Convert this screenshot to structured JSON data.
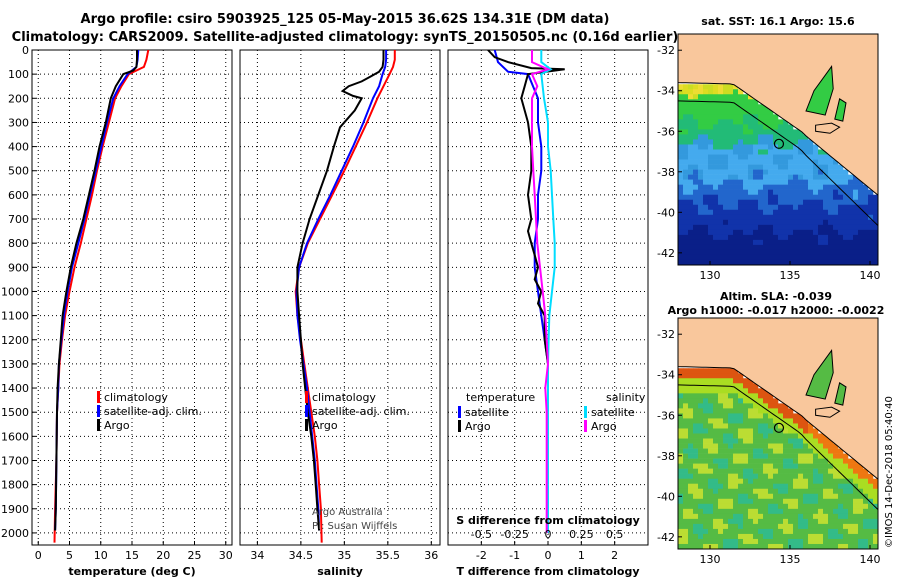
{
  "title_line1": "Argo profile: csiro 5903925_125 05-May-2015 36.62S 134.31E (DM data)",
  "title_line2": "Climatology: CARS2009. Satellite-adjusted climatology: synTS_20150505.nc (0.16d earlier)",
  "footer": "©IMOS 14-Dec-2018 05:40:40",
  "credit_line1": "Argo Australia",
  "credit_line2": "PI: Susan Wijffels",
  "colors": {
    "climatology": "#ff0000",
    "satellite": "#0000ff",
    "argo": "#000000",
    "salinity_satellite": "#00ddff",
    "salinity_argo": "#ff00ff"
  },
  "chart_data": [
    {
      "type": "line",
      "panel": "temperature",
      "xlabel": "temperature (deg C)",
      "ylabel": "",
      "xlim": [
        -1,
        31
      ],
      "ylim": [
        2050,
        0
      ],
      "xticks": [
        0,
        5,
        10,
        15,
        20,
        25,
        30
      ],
      "yticks": [
        0,
        100,
        200,
        300,
        400,
        500,
        600,
        700,
        800,
        900,
        1000,
        1100,
        1200,
        1300,
        1400,
        1500,
        1600,
        1700,
        1800,
        1900,
        2000
      ],
      "grid": true,
      "legend": "lower-center",
      "series": [
        {
          "name": "climatology",
          "points": [
            [
              17.6,
              0
            ],
            [
              17.3,
              40
            ],
            [
              16.9,
              70
            ],
            [
              14.5,
              100
            ],
            [
              13.3,
              150
            ],
            [
              12.3,
              200
            ],
            [
              11.3,
              300
            ],
            [
              10.3,
              400
            ],
            [
              9.4,
              500
            ],
            [
              8.6,
              600
            ],
            [
              7.7,
              700
            ],
            [
              6.8,
              800
            ],
            [
              5.8,
              900
            ],
            [
              5.0,
              1000
            ],
            [
              4.3,
              1100
            ],
            [
              3.8,
              1200
            ],
            [
              3.4,
              1300
            ],
            [
              3.2,
              1400
            ],
            [
              3.0,
              1500
            ],
            [
              2.9,
              1700
            ],
            [
              2.7,
              1900
            ],
            [
              2.6,
              2040
            ]
          ]
        },
        {
          "name": "satellite-adj. clim.",
          "points": [
            [
              16.0,
              0
            ],
            [
              15.9,
              40
            ],
            [
              15.7,
              70
            ],
            [
              14.3,
              100
            ],
            [
              13.0,
              150
            ],
            [
              12.0,
              200
            ],
            [
              11.0,
              300
            ],
            [
              10.1,
              400
            ],
            [
              9.2,
              500
            ],
            [
              8.3,
              600
            ],
            [
              7.4,
              700
            ],
            [
              6.4,
              800
            ],
            [
              5.4,
              900
            ],
            [
              4.7,
              1000
            ],
            [
              4.1,
              1100
            ],
            [
              3.7,
              1200
            ],
            [
              3.3,
              1300
            ],
            [
              3.2,
              1400
            ],
            [
              3.0,
              1500
            ],
            [
              2.9,
              1700
            ],
            [
              2.8,
              1900
            ],
            [
              2.7,
              1990
            ]
          ]
        },
        {
          "name": "Argo",
          "points": [
            [
              15.8,
              0
            ],
            [
              15.8,
              40
            ],
            [
              15.7,
              70
            ],
            [
              15.2,
              85
            ],
            [
              13.6,
              100
            ],
            [
              12.4,
              150
            ],
            [
              11.6,
              200
            ],
            [
              10.8,
              300
            ],
            [
              9.8,
              400
            ],
            [
              9.0,
              500
            ],
            [
              8.1,
              600
            ],
            [
              7.2,
              700
            ],
            [
              6.1,
              800
            ],
            [
              5.2,
              900
            ],
            [
              4.5,
              1000
            ],
            [
              3.9,
              1100
            ],
            [
              3.6,
              1200
            ],
            [
              3.3,
              1300
            ],
            [
              3.1,
              1400
            ],
            [
              3.0,
              1500
            ],
            [
              2.9,
              1700
            ],
            [
              2.8,
              1900
            ],
            [
              2.7,
              1990
            ]
          ]
        }
      ]
    },
    {
      "type": "line",
      "panel": "salinity",
      "xlabel": "salinity",
      "ylabel": "",
      "xlim": [
        33.8,
        36.1
      ],
      "ylim": [
        2050,
        0
      ],
      "xticks": [
        34,
        34.5,
        35,
        35.5,
        36
      ],
      "xticklabels": [
        "34",
        "34.5",
        "35",
        "35.5",
        "36"
      ],
      "grid": true,
      "legend": "lower-center",
      "series": [
        {
          "name": "climatology",
          "points": [
            [
              35.58,
              0
            ],
            [
              35.58,
              40
            ],
            [
              35.56,
              70
            ],
            [
              35.52,
              100
            ],
            [
              35.45,
              150
            ],
            [
              35.38,
              200
            ],
            [
              35.26,
              300
            ],
            [
              35.13,
              400
            ],
            [
              35.0,
              500
            ],
            [
              34.86,
              600
            ],
            [
              34.72,
              700
            ],
            [
              34.58,
              800
            ],
            [
              34.48,
              900
            ],
            [
              34.44,
              1000
            ],
            [
              34.46,
              1100
            ],
            [
              34.5,
              1200
            ],
            [
              34.54,
              1300
            ],
            [
              34.58,
              1400
            ],
            [
              34.62,
              1500
            ],
            [
              34.66,
              1600
            ],
            [
              34.69,
              1700
            ],
            [
              34.71,
              1800
            ],
            [
              34.73,
              1900
            ],
            [
              34.74,
              2040
            ]
          ]
        },
        {
          "name": "satellite-adj. clim.",
          "points": [
            [
              35.48,
              0
            ],
            [
              35.48,
              40
            ],
            [
              35.47,
              70
            ],
            [
              35.44,
              100
            ],
            [
              35.4,
              150
            ],
            [
              35.33,
              200
            ],
            [
              35.22,
              300
            ],
            [
              35.1,
              400
            ],
            [
              34.97,
              500
            ],
            [
              34.84,
              600
            ],
            [
              34.7,
              700
            ],
            [
              34.57,
              800
            ],
            [
              34.48,
              900
            ],
            [
              34.45,
              1000
            ],
            [
              34.46,
              1100
            ],
            [
              34.49,
              1200
            ],
            [
              34.53,
              1300
            ],
            [
              34.57,
              1400
            ],
            [
              34.6,
              1500
            ],
            [
              34.63,
              1600
            ],
            [
              34.66,
              1700
            ],
            [
              34.68,
              1800
            ],
            [
              34.7,
              1900
            ],
            [
              34.71,
              1990
            ]
          ]
        },
        {
          "name": "Argo",
          "points": [
            [
              35.45,
              0
            ],
            [
              35.45,
              40
            ],
            [
              35.44,
              70
            ],
            [
              35.4,
              90
            ],
            [
              35.3,
              110
            ],
            [
              35.2,
              130
            ],
            [
              35.05,
              150
            ],
            [
              34.98,
              170
            ],
            [
              35.1,
              190
            ],
            [
              35.2,
              200
            ],
            [
              35.12,
              250
            ],
            [
              34.95,
              320
            ],
            [
              34.88,
              400
            ],
            [
              34.8,
              500
            ],
            [
              34.7,
              600
            ],
            [
              34.6,
              700
            ],
            [
              34.52,
              800
            ],
            [
              34.46,
              900
            ],
            [
              34.46,
              1000
            ],
            [
              34.48,
              1100
            ],
            [
              34.5,
              1200
            ],
            [
              34.52,
              1300
            ],
            [
              34.55,
              1400
            ],
            [
              34.58,
              1500
            ],
            [
              34.62,
              1600
            ],
            [
              34.65,
              1700
            ],
            [
              34.67,
              1800
            ],
            [
              34.69,
              1900
            ],
            [
              34.71,
              1990
            ]
          ]
        }
      ]
    },
    {
      "type": "line",
      "panel": "difference",
      "xlabel": "T difference from climatology",
      "xlabel2": "S difference from climatology",
      "ylabel": "",
      "xlim": [
        -3,
        3
      ],
      "x2lim": [
        -0.75,
        0.75
      ],
      "ylim": [
        2050,
        0
      ],
      "xticks": [
        -2,
        -1,
        0,
        1,
        2
      ],
      "x2ticks": [
        -0.5,
        -0.25,
        0,
        0.25,
        0.5
      ],
      "x2ticklabels": [
        "-0.5",
        "-0.25",
        "0",
        "0.25",
        "0.5"
      ],
      "grid": true,
      "legend_left_title": "temperature",
      "legend_right_title": "salinity",
      "series": [
        {
          "name": "satellite",
          "variable": "temperature",
          "points": [
            [
              -1.6,
              0
            ],
            [
              -1.5,
              50
            ],
            [
              -1.2,
              90
            ],
            [
              -0.6,
              100
            ],
            [
              -0.3,
              200
            ],
            [
              -0.3,
              300
            ],
            [
              -0.2,
              400
            ],
            [
              -0.2,
              500
            ],
            [
              -0.3,
              600
            ],
            [
              -0.3,
              700
            ],
            [
              -0.4,
              800
            ],
            [
              -0.4,
              900
            ],
            [
              -0.3,
              1000
            ],
            [
              -0.2,
              1100
            ],
            [
              -0.1,
              1200
            ],
            [
              0.0,
              1300
            ],
            [
              0.0,
              1400
            ],
            [
              0.0,
              1500
            ],
            [
              0.0,
              2000
            ]
          ]
        },
        {
          "name": "Argo",
          "variable": "temperature",
          "points": [
            [
              -1.8,
              0
            ],
            [
              -1.6,
              30
            ],
            [
              -1.2,
              50
            ],
            [
              -0.5,
              75
            ],
            [
              0.5,
              80
            ],
            [
              -0.6,
              100
            ],
            [
              -0.7,
              150
            ],
            [
              -0.8,
              200
            ],
            [
              -0.6,
              300
            ],
            [
              -0.5,
              400
            ],
            [
              -0.5,
              500
            ],
            [
              -0.6,
              600
            ],
            [
              -0.5,
              700
            ],
            [
              -0.6,
              750
            ],
            [
              -0.5,
              800
            ],
            [
              -0.4,
              850
            ],
            [
              -0.3,
              900
            ],
            [
              -0.4,
              950
            ],
            [
              -0.2,
              1000
            ],
            [
              -0.3,
              1050
            ],
            [
              -0.1,
              1100
            ],
            [
              -0.1,
              1200
            ],
            [
              0.0,
              1300
            ],
            [
              0.0,
              1400
            ],
            [
              0.0,
              2000
            ]
          ]
        },
        {
          "name": "satellite",
          "variable": "salinity",
          "points": [
            [
              -0.05,
              0
            ],
            [
              -0.05,
              50
            ],
            [
              0.02,
              80
            ],
            [
              -0.05,
              100
            ],
            [
              -0.03,
              200
            ],
            [
              0.0,
              300
            ],
            [
              0.0,
              400
            ],
            [
              0.02,
              500
            ],
            [
              0.03,
              600
            ],
            [
              0.04,
              700
            ],
            [
              0.05,
              800
            ],
            [
              0.05,
              900
            ],
            [
              0.03,
              1000
            ],
            [
              0.01,
              1100
            ],
            [
              0.0,
              1300
            ],
            [
              0.0,
              1500
            ],
            [
              0.0,
              2000
            ]
          ]
        },
        {
          "name": "Argo",
          "variable": "salinity",
          "points": [
            [
              -0.12,
              0
            ],
            [
              -0.12,
              50
            ],
            [
              0.0,
              80
            ],
            [
              -0.12,
              100
            ],
            [
              -0.08,
              150
            ],
            [
              -0.12,
              200
            ],
            [
              -0.12,
              300
            ],
            [
              -0.12,
              400
            ],
            [
              -0.11,
              500
            ],
            [
              -0.1,
              600
            ],
            [
              -0.09,
              700
            ],
            [
              -0.08,
              800
            ],
            [
              -0.06,
              900
            ],
            [
              -0.04,
              1000
            ],
            [
              -0.02,
              1100
            ],
            [
              -0.01,
              1200
            ],
            [
              0.0,
              1300
            ],
            [
              -0.02,
              1400
            ],
            [
              -0.01,
              1500
            ],
            [
              -0.01,
              1700
            ],
            [
              -0.01,
              2000
            ]
          ]
        }
      ]
    },
    {
      "type": "heatmap",
      "panel": "sst-map",
      "title": "sat. SST: 16.1  Argo: 15.6",
      "xlim": [
        128,
        140.5
      ],
      "ylim": [
        -42.6,
        -31.2
      ],
      "xticks": [
        130,
        135,
        140
      ],
      "yticks": [
        -32,
        -34,
        -36,
        -38,
        -40,
        -42
      ],
      "profile_location": [
        134.31,
        -36.62
      ]
    },
    {
      "type": "heatmap",
      "panel": "sla-map",
      "title": "Altim. SLA: -0.039",
      "subtitle": "Argo h1000: -0.017  h2000: -0.0022",
      "xlim": [
        128,
        140.5
      ],
      "ylim": [
        -42.6,
        -31.2
      ],
      "xticks": [
        130,
        135,
        140
      ],
      "yticks": [
        -32,
        -34,
        -36,
        -38,
        -40,
        -42
      ],
      "profile_location": [
        134.31,
        -36.62
      ]
    }
  ]
}
